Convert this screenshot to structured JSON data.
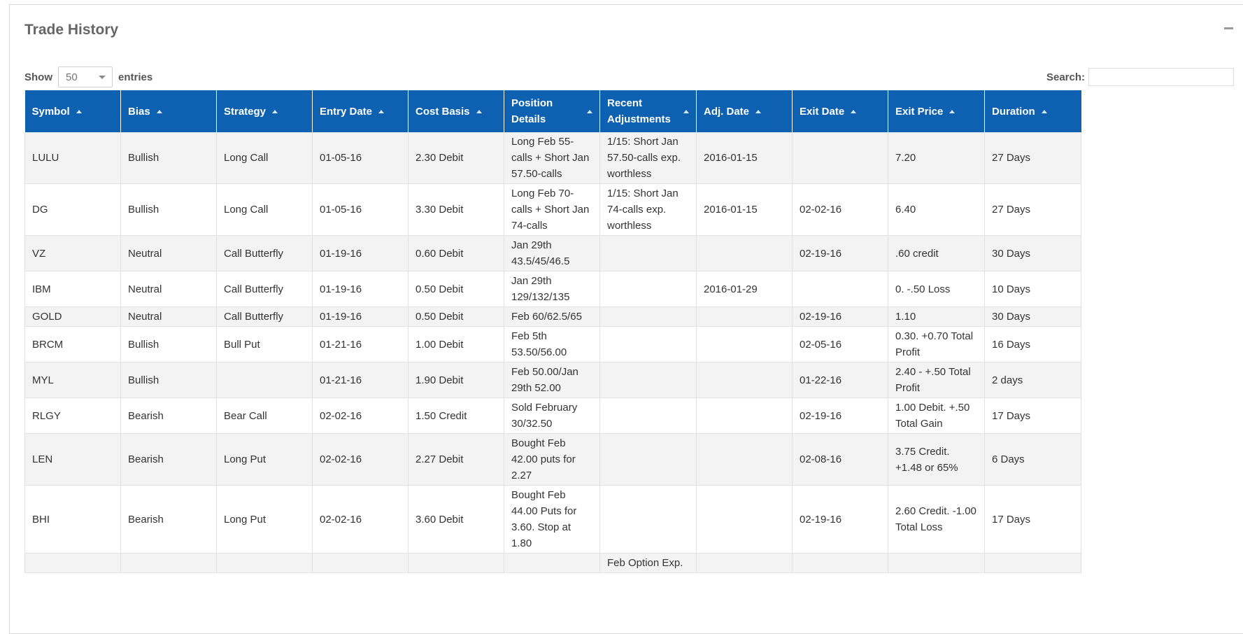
{
  "panel": {
    "title": "Trade History"
  },
  "length_control": {
    "show_label": "Show",
    "value": "50",
    "entries_label": "entries"
  },
  "search": {
    "label": "Search:",
    "value": "",
    "placeholder": ""
  },
  "table": {
    "headers": [
      "Symbol",
      "Bias",
      "Strategy",
      "Entry Date",
      "Cost Basis",
      "Position Details",
      "Recent Adjustments",
      "Adj. Date",
      "Exit Date",
      "Exit Price",
      "Duration"
    ],
    "rows": [
      [
        "LULU",
        "Bullish",
        "Long Call",
        "01-05-16",
        "2.30 Debit",
        "Long Feb 55-calls + Short Jan 57.50-calls",
        "1/15: Short Jan 57.50-calls exp. worthless",
        "2016-01-15",
        "",
        "7.20",
        "27 Days"
      ],
      [
        "DG",
        "Bullish",
        "Long Call",
        "01-05-16",
        "3.30 Debit",
        "Long Feb 70-calls + Short Jan 74-calls",
        "1/15: Short Jan 74-calls exp. worthless",
        "2016-01-15",
        "02-02-16",
        "6.40",
        "27 Days"
      ],
      [
        "VZ",
        "Neutral",
        "Call Butterfly",
        "01-19-16",
        "0.60 Debit",
        "Jan 29th 43.5/45/46.5",
        "",
        "",
        "02-19-16",
        ".60 credit",
        "30 Days"
      ],
      [
        "IBM",
        "Neutral",
        "Call Butterfly",
        "01-19-16",
        "0.50 Debit",
        "Jan 29th 129/132/135",
        "",
        "2016-01-29",
        "",
        "0. -.50 Loss",
        "10 Days"
      ],
      [
        "GOLD",
        "Neutral",
        "Call Butterfly",
        "01-19-16",
        "0.50 Debit",
        "Feb 60/62.5/65",
        "",
        "",
        "02-19-16",
        "1.10",
        "30 Days"
      ],
      [
        "BRCM",
        "Bullish",
        "Bull Put",
        "01-21-16",
        "1.00 Debit",
        "Feb 5th 53.50/56.00",
        "",
        "",
        "02-05-16",
        "0.30. +0.70 Total Profit",
        "16 Days"
      ],
      [
        "MYL",
        "Bullish",
        "",
        "01-21-16",
        "1.90 Debit",
        "Feb 50.00/Jan 29th 52.00",
        "",
        "",
        "01-22-16",
        "2.40 - +.50 Total Profit",
        "2 days"
      ],
      [
        "RLGY",
        "Bearish",
        "Bear Call",
        "02-02-16",
        "1.50 Credit",
        "Sold February 30/32.50",
        "",
        "",
        "02-19-16",
        "1.00 Debit. +.50 Total Gain",
        "17 Days"
      ],
      [
        "LEN",
        "Bearish",
        "Long Put",
        "02-02-16",
        "2.27 Debit",
        "Bought Feb 42.00 puts for 2.27",
        "",
        "",
        "02-08-16",
        "3.75 Credit. +1.48 or 65%",
        "6 Days"
      ],
      [
        "BHI",
        "Bearish",
        "Long Put",
        "02-02-16",
        "3.60 Debit",
        "Bought Feb 44.00 Puts for 3.60. Stop at 1.80",
        "",
        "",
        "02-19-16",
        "2.60 Credit. -1.00 Total Loss",
        "17 Days"
      ],
      [
        "",
        "",
        "",
        "",
        "",
        "",
        "Feb Option Exp.",
        "",
        "",
        "",
        ""
      ]
    ]
  }
}
